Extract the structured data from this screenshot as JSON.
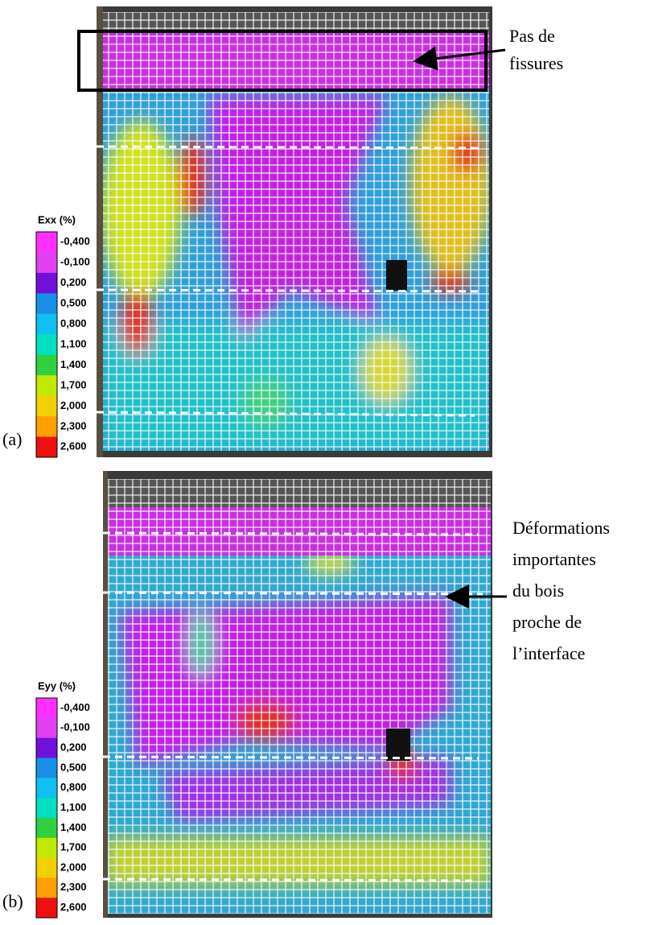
{
  "panels": [
    {
      "label": "(a)",
      "legend": {
        "title": "Exx (%)",
        "labels": [
          "-0,400",
          "-0,100",
          "0,200",
          "0,500",
          "0,800",
          "1,100",
          "1,400",
          "1,700",
          "2,000",
          "2,300",
          "2,600"
        ]
      },
      "annotation": [
        "Pas de",
        "fissures"
      ]
    },
    {
      "label": "(b)",
      "legend": {
        "title": "Eyy (%)",
        "labels": [
          "-0,400",
          "-0,100",
          "0,200",
          "0,500",
          "0,800",
          "1,100",
          "1,400",
          "1,700",
          "2,000",
          "2,300",
          "2,600"
        ]
      },
      "annotation": [
        "Déformations",
        "importantes",
        "du bois",
        "proche de",
        "l’interface"
      ]
    }
  ]
}
